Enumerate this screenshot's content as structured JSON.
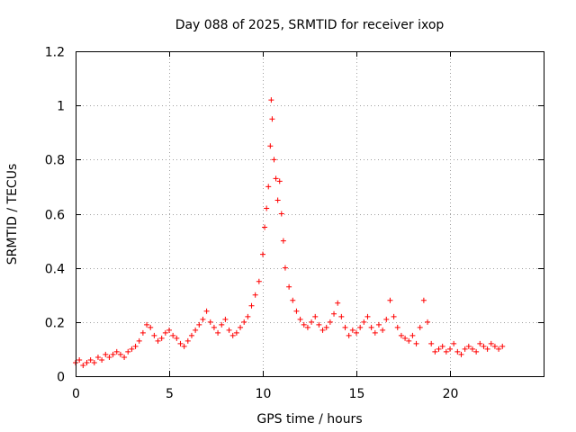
{
  "chart_data": {
    "type": "scatter",
    "title": "Day 088 of 2025, SRMTID for receiver ixop",
    "xlabel": "GPS time / hours",
    "ylabel": "SRMTID / TECUs",
    "xlim": [
      0,
      25
    ],
    "ylim": [
      0,
      1.2
    ],
    "x_ticks": [
      0,
      5,
      10,
      15,
      20
    ],
    "x_tick_labels": [
      "0",
      "5",
      "10",
      "15",
      "20"
    ],
    "y_ticks": [
      0,
      0.2,
      0.4,
      0.6,
      0.8,
      1.0,
      1.2
    ],
    "y_tick_labels": [
      "0",
      "0.2",
      "0.4",
      "0.6",
      "0.8",
      "1",
      "1.2"
    ],
    "grid": true,
    "marker": "plus",
    "color": "#ff0000",
    "series": [
      {
        "name": "SRMTID",
        "points": [
          [
            0.0,
            0.05
          ],
          [
            0.2,
            0.06
          ],
          [
            0.4,
            0.04
          ],
          [
            0.6,
            0.05
          ],
          [
            0.8,
            0.06
          ],
          [
            1.0,
            0.05
          ],
          [
            1.2,
            0.07
          ],
          [
            1.4,
            0.06
          ],
          [
            1.6,
            0.08
          ],
          [
            1.8,
            0.07
          ],
          [
            2.0,
            0.08
          ],
          [
            2.2,
            0.09
          ],
          [
            2.4,
            0.08
          ],
          [
            2.6,
            0.07
          ],
          [
            2.8,
            0.09
          ],
          [
            3.0,
            0.1
          ],
          [
            3.2,
            0.11
          ],
          [
            3.4,
            0.13
          ],
          [
            3.6,
            0.16
          ],
          [
            3.8,
            0.19
          ],
          [
            4.0,
            0.18
          ],
          [
            4.2,
            0.15
          ],
          [
            4.4,
            0.13
          ],
          [
            4.6,
            0.14
          ],
          [
            4.8,
            0.16
          ],
          [
            5.0,
            0.17
          ],
          [
            5.2,
            0.15
          ],
          [
            5.4,
            0.14
          ],
          [
            5.6,
            0.12
          ],
          [
            5.8,
            0.11
          ],
          [
            6.0,
            0.13
          ],
          [
            6.2,
            0.15
          ],
          [
            6.4,
            0.17
          ],
          [
            6.6,
            0.19
          ],
          [
            6.8,
            0.21
          ],
          [
            7.0,
            0.24
          ],
          [
            7.2,
            0.2
          ],
          [
            7.4,
            0.18
          ],
          [
            7.6,
            0.16
          ],
          [
            7.8,
            0.19
          ],
          [
            8.0,
            0.21
          ],
          [
            8.2,
            0.17
          ],
          [
            8.4,
            0.15
          ],
          [
            8.6,
            0.16
          ],
          [
            8.8,
            0.18
          ],
          [
            9.0,
            0.2
          ],
          [
            9.2,
            0.22
          ],
          [
            9.4,
            0.26
          ],
          [
            9.6,
            0.3
          ],
          [
            9.8,
            0.35
          ],
          [
            10.0,
            0.45
          ],
          [
            10.1,
            0.55
          ],
          [
            10.2,
            0.62
          ],
          [
            10.3,
            0.7
          ],
          [
            10.4,
            0.85
          ],
          [
            10.45,
            1.02
          ],
          [
            10.5,
            0.95
          ],
          [
            10.6,
            0.8
          ],
          [
            10.7,
            0.73
          ],
          [
            10.8,
            0.65
          ],
          [
            10.9,
            0.72
          ],
          [
            11.0,
            0.6
          ],
          [
            11.1,
            0.5
          ],
          [
            11.2,
            0.4
          ],
          [
            11.4,
            0.33
          ],
          [
            11.6,
            0.28
          ],
          [
            11.8,
            0.24
          ],
          [
            12.0,
            0.21
          ],
          [
            12.2,
            0.19
          ],
          [
            12.4,
            0.18
          ],
          [
            12.6,
            0.2
          ],
          [
            12.8,
            0.22
          ],
          [
            13.0,
            0.19
          ],
          [
            13.2,
            0.17
          ],
          [
            13.4,
            0.18
          ],
          [
            13.6,
            0.2
          ],
          [
            13.8,
            0.23
          ],
          [
            14.0,
            0.27
          ],
          [
            14.2,
            0.22
          ],
          [
            14.4,
            0.18
          ],
          [
            14.6,
            0.15
          ],
          [
            14.8,
            0.17
          ],
          [
            15.0,
            0.16
          ],
          [
            15.2,
            0.18
          ],
          [
            15.4,
            0.2
          ],
          [
            15.6,
            0.22
          ],
          [
            15.8,
            0.18
          ],
          [
            16.0,
            0.16
          ],
          [
            16.2,
            0.19
          ],
          [
            16.4,
            0.17
          ],
          [
            16.6,
            0.21
          ],
          [
            16.8,
            0.28
          ],
          [
            17.0,
            0.22
          ],
          [
            17.2,
            0.18
          ],
          [
            17.4,
            0.15
          ],
          [
            17.6,
            0.14
          ],
          [
            17.8,
            0.13
          ],
          [
            18.0,
            0.15
          ],
          [
            18.2,
            0.12
          ],
          [
            18.4,
            0.18
          ],
          [
            18.6,
            0.28
          ],
          [
            18.8,
            0.2
          ],
          [
            19.0,
            0.12
          ],
          [
            19.2,
            0.09
          ],
          [
            19.4,
            0.1
          ],
          [
            19.6,
            0.11
          ],
          [
            19.8,
            0.09
          ],
          [
            20.0,
            0.1
          ],
          [
            20.2,
            0.12
          ],
          [
            20.4,
            0.09
          ],
          [
            20.6,
            0.08
          ],
          [
            20.8,
            0.1
          ],
          [
            21.0,
            0.11
          ],
          [
            21.2,
            0.1
          ],
          [
            21.4,
            0.09
          ],
          [
            21.6,
            0.12
          ],
          [
            21.8,
            0.11
          ],
          [
            22.0,
            0.1
          ],
          [
            22.2,
            0.12
          ],
          [
            22.4,
            0.11
          ],
          [
            22.6,
            0.1
          ],
          [
            22.8,
            0.11
          ]
        ]
      }
    ]
  }
}
